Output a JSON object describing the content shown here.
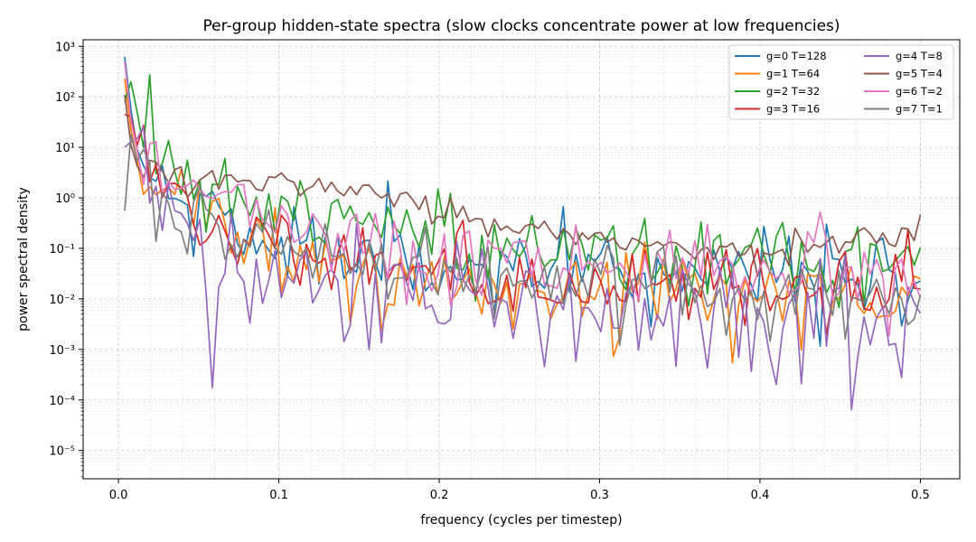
{
  "chart_data": {
    "type": "line",
    "title": "Per-group hidden-state spectra (slow clocks concentrate power at low frequencies)",
    "xlabel": "frequency (cycles per timestep)",
    "ylabel": "power spectral density",
    "xlim": [
      -0.022,
      0.5245
    ],
    "ylim_log10": [
      -5.56,
      3.13
    ],
    "yscale": "log",
    "grid": true,
    "legend_position": "top-right",
    "x_ticks": [
      {
        "value": 0.0,
        "label": "0.0"
      },
      {
        "value": 0.1,
        "label": "0.1"
      },
      {
        "value": 0.2,
        "label": "0.2"
      },
      {
        "value": 0.3,
        "label": "0.3"
      },
      {
        "value": 0.4,
        "label": "0.4"
      },
      {
        "value": 0.5,
        "label": "0.5"
      }
    ],
    "y_ticks": [
      {
        "exp": -5,
        "label": "10⁻⁵"
      },
      {
        "exp": -4,
        "label": "10⁻⁴"
      },
      {
        "exp": -3,
        "label": "10⁻³"
      },
      {
        "exp": -2,
        "label": "10⁻²"
      },
      {
        "exp": -1,
        "label": "10⁻¹"
      },
      {
        "exp": 0,
        "label": "10⁰"
      },
      {
        "exp": 1,
        "label": "10¹"
      },
      {
        "exp": 2,
        "label": "10²"
      },
      {
        "exp": 3,
        "label": "10³"
      }
    ],
    "series": [
      {
        "name": "g=0 T=128",
        "color": "#1f77b4",
        "anchors": [
          [
            0.0039,
            620
          ],
          [
            0.008,
            50
          ],
          [
            0.012,
            8
          ],
          [
            0.02,
            4
          ],
          [
            0.03,
            2.5
          ],
          [
            0.045,
            1.5
          ],
          [
            0.06,
            0.6
          ],
          [
            0.08,
            0.25
          ],
          [
            0.1,
            0.12
          ],
          [
            0.15,
            0.06
          ],
          [
            0.2,
            0.045
          ],
          [
            0.25,
            0.04
          ],
          [
            0.3,
            0.04
          ],
          [
            0.35,
            0.035
          ],
          [
            0.4,
            0.035
          ],
          [
            0.45,
            0.03
          ],
          [
            0.5,
            0.03
          ]
        ],
        "noise": 1.0,
        "seed": 11
      },
      {
        "name": "g=1 T=64",
        "color": "#ff7f0e",
        "anchors": [
          [
            0.0039,
            230
          ],
          [
            0.008,
            20
          ],
          [
            0.012,
            5
          ],
          [
            0.02,
            2
          ],
          [
            0.03,
            1.2
          ],
          [
            0.05,
            0.5
          ],
          [
            0.08,
            0.12
          ],
          [
            0.1,
            0.06
          ],
          [
            0.15,
            0.03
          ],
          [
            0.2,
            0.02
          ],
          [
            0.3,
            0.015
          ],
          [
            0.4,
            0.012
          ],
          [
            0.5,
            0.011
          ]
        ],
        "noise": 0.9,
        "seed": 23
      },
      {
        "name": "g=2 T=32",
        "color": "#2ca02c",
        "anchors": [
          [
            0.0039,
            80
          ],
          [
            0.0078,
            200
          ],
          [
            0.012,
            45
          ],
          [
            0.02,
            20
          ],
          [
            0.03,
            8
          ],
          [
            0.04,
            4
          ],
          [
            0.06,
            1.6
          ],
          [
            0.08,
            0.8
          ],
          [
            0.1,
            0.45
          ],
          [
            0.15,
            0.2
          ],
          [
            0.2,
            0.12
          ],
          [
            0.25,
            0.09
          ],
          [
            0.3,
            0.08
          ],
          [
            0.35,
            0.07
          ],
          [
            0.4,
            0.07
          ],
          [
            0.45,
            0.07
          ],
          [
            0.5,
            0.07
          ]
        ],
        "noise": 1.0,
        "seed": 37
      },
      {
        "name": "g=3 T=16",
        "color": "#d62728",
        "anchors": [
          [
            0.0039,
            45
          ],
          [
            0.008,
            40
          ],
          [
            0.012,
            10
          ],
          [
            0.02,
            3
          ],
          [
            0.03,
            1
          ],
          [
            0.05,
            0.4
          ],
          [
            0.08,
            0.15
          ],
          [
            0.1,
            0.1
          ],
          [
            0.15,
            0.06
          ],
          [
            0.2,
            0.04
          ],
          [
            0.3,
            0.025
          ],
          [
            0.4,
            0.02
          ],
          [
            0.5,
            0.02
          ]
        ],
        "noise": 0.9,
        "seed": 41
      },
      {
        "name": "g=4 T=8",
        "color": "#9467bd",
        "anchors": [
          [
            0.0039,
            10
          ],
          [
            0.008,
            13
          ],
          [
            0.012,
            15
          ],
          [
            0.016,
            3
          ],
          [
            0.02,
            1
          ],
          [
            0.03,
            0.4
          ],
          [
            0.05,
            0.12
          ],
          [
            0.1,
            0.035
          ],
          [
            0.2,
            0.012
          ],
          [
            0.3,
            0.006
          ],
          [
            0.4,
            0.004
          ],
          [
            0.5,
            0.003
          ]
        ],
        "noise": 1.35,
        "seed": 53
      },
      {
        "name": "g=5 T=4",
        "color": "#8c564b",
        "anchors": [
          [
            0.0039,
            110
          ],
          [
            0.008,
            10
          ],
          [
            0.012,
            4
          ],
          [
            0.02,
            3
          ],
          [
            0.03,
            3
          ],
          [
            0.05,
            2.5
          ],
          [
            0.08,
            2
          ],
          [
            0.1,
            1.6
          ],
          [
            0.13,
            1.3
          ],
          [
            0.15,
            1.2
          ],
          [
            0.18,
            0.8
          ],
          [
            0.2,
            0.5
          ],
          [
            0.25,
            0.25
          ],
          [
            0.3,
            0.15
          ],
          [
            0.35,
            0.1
          ],
          [
            0.4,
            0.1
          ],
          [
            0.45,
            0.13
          ],
          [
            0.5,
            0.22
          ]
        ],
        "noise": 0.3,
        "seed": 67
      },
      {
        "name": "g=6 T=2",
        "color": "#e377c2",
        "anchors": [
          [
            0.0039,
            500
          ],
          [
            0.008,
            30
          ],
          [
            0.012,
            8
          ],
          [
            0.02,
            5
          ],
          [
            0.03,
            3
          ],
          [
            0.05,
            1.5
          ],
          [
            0.08,
            0.6
          ],
          [
            0.1,
            0.3
          ],
          [
            0.15,
            0.15
          ],
          [
            0.2,
            0.08
          ],
          [
            0.3,
            0.05
          ],
          [
            0.4,
            0.04
          ],
          [
            0.5,
            0.04
          ]
        ],
        "noise": 0.8,
        "seed": 79
      },
      {
        "name": "g=7 T=1",
        "color": "#7f7f7f",
        "anchors": [
          [
            0.0039,
            0.55
          ],
          [
            0.0078,
            18
          ],
          [
            0.012,
            5
          ],
          [
            0.02,
            1
          ],
          [
            0.03,
            0.6
          ],
          [
            0.05,
            0.3
          ],
          [
            0.08,
            0.12
          ],
          [
            0.1,
            0.08
          ],
          [
            0.15,
            0.04
          ],
          [
            0.2,
            0.03
          ],
          [
            0.3,
            0.02
          ],
          [
            0.4,
            0.012
          ],
          [
            0.5,
            0.01
          ]
        ],
        "noise": 0.9,
        "seed": 97
      }
    ]
  }
}
